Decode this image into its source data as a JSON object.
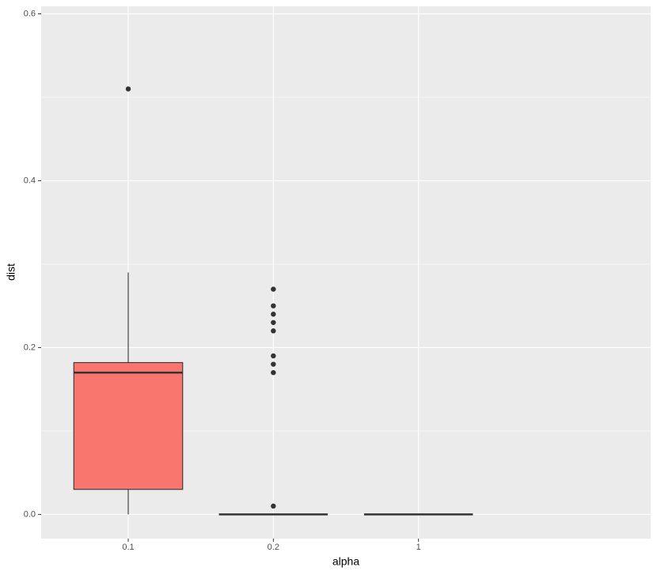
{
  "chart_data": {
    "type": "box",
    "x_label": "alpha",
    "y_label": "dist",
    "categories": [
      "0.1",
      "0.2",
      "1"
    ],
    "color": "#F8766D",
    "boxes": [
      {
        "min": 0,
        "q1": 0.03,
        "median": 0.17,
        "q3": 0.182,
        "max": 0.29,
        "outliers": [
          0.51
        ]
      },
      {
        "min": 0,
        "q1": 0,
        "median": 0,
        "q3": 0,
        "max": 0,
        "outliers": [
          0.27,
          0.25,
          0.24,
          0.23,
          0.22,
          0.19,
          0.18,
          0.17,
          0.01
        ]
      },
      {
        "min": 0,
        "q1": 0,
        "median": 0,
        "q3": 0,
        "max": 0,
        "outliers": []
      }
    ],
    "ylim": [
      -0.029,
      0.609
    ],
    "yticks": [
      {
        "value": 0,
        "label": "0.0"
      },
      0.2,
      0.4,
      0.6
    ],
    "y_minor_ticks": [
      0.1,
      0.3,
      0.5
    ],
    "grid": true
  }
}
